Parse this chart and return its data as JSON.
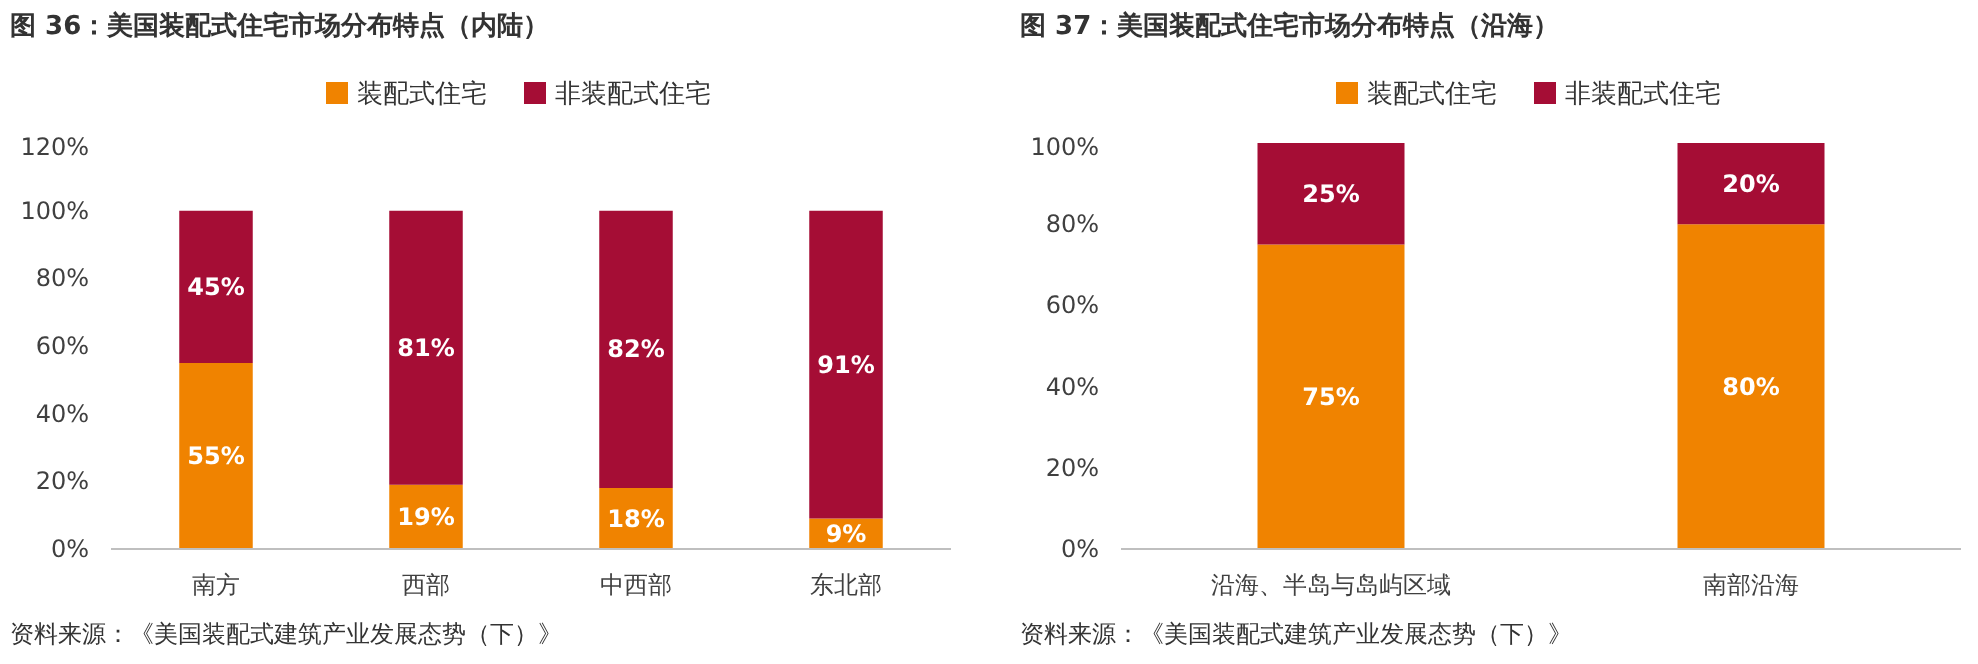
{
  "chart_data": [
    {
      "type": "bar",
      "stacked": true,
      "title": "图 36：美国装配式住宅市场分布特点（内陆）",
      "categories": [
        "南方",
        "西部",
        "中西部",
        "东北部"
      ],
      "legend": "top",
      "ylim": [
        0,
        120
      ],
      "yticks": [
        {
          "value": 0,
          "label": "0%"
        },
        {
          "value": 20,
          "label": "20%"
        },
        {
          "value": 40,
          "label": "40%"
        },
        {
          "value": 60,
          "label": "60%"
        },
        {
          "value": 80,
          "label": "80%"
        },
        {
          "value": 100,
          "label": "100%"
        },
        {
          "value": 120,
          "label": "120%"
        }
      ],
      "annotations": [
        "资料来源：《美国装配式建筑产业发展态势（下）》"
      ],
      "series": [
        {
          "name": "装配式住宅",
          "color": "#f08300",
          "values": [
            55,
            19,
            18,
            9
          ],
          "value_labels": [
            "55%",
            "19%",
            "18%",
            "9%"
          ]
        },
        {
          "name": "非装配式住宅",
          "color": "#a50d35",
          "values": [
            45,
            81,
            82,
            91
          ],
          "value_labels": [
            "45%",
            "81%",
            "82%",
            "91%"
          ]
        }
      ]
    },
    {
      "type": "bar",
      "stacked": true,
      "title": "图 37：美国装配式住宅市场分布特点（沿海）",
      "categories": [
        "沿海、半岛与岛屿区域",
        "南部沿海"
      ],
      "legend": "top",
      "ylim": [
        0,
        100
      ],
      "yticks": [
        {
          "value": 0,
          "label": "0%"
        },
        {
          "value": 20,
          "label": "20%"
        },
        {
          "value": 40,
          "label": "40%"
        },
        {
          "value": 60,
          "label": "60%"
        },
        {
          "value": 80,
          "label": "80%"
        },
        {
          "value": 100,
          "label": "100%"
        }
      ],
      "annotations": [
        "资料来源：《美国装配式建筑产业发展态势（下）》"
      ],
      "series": [
        {
          "name": "装配式住宅",
          "color": "#f08300",
          "values": [
            75,
            80
          ],
          "value_labels": [
            "75%",
            "80%"
          ]
        },
        {
          "name": "非装配式住宅",
          "color": "#a50d35",
          "values": [
            25,
            20
          ],
          "value_labels": [
            "25%",
            "20%"
          ]
        }
      ]
    }
  ]
}
